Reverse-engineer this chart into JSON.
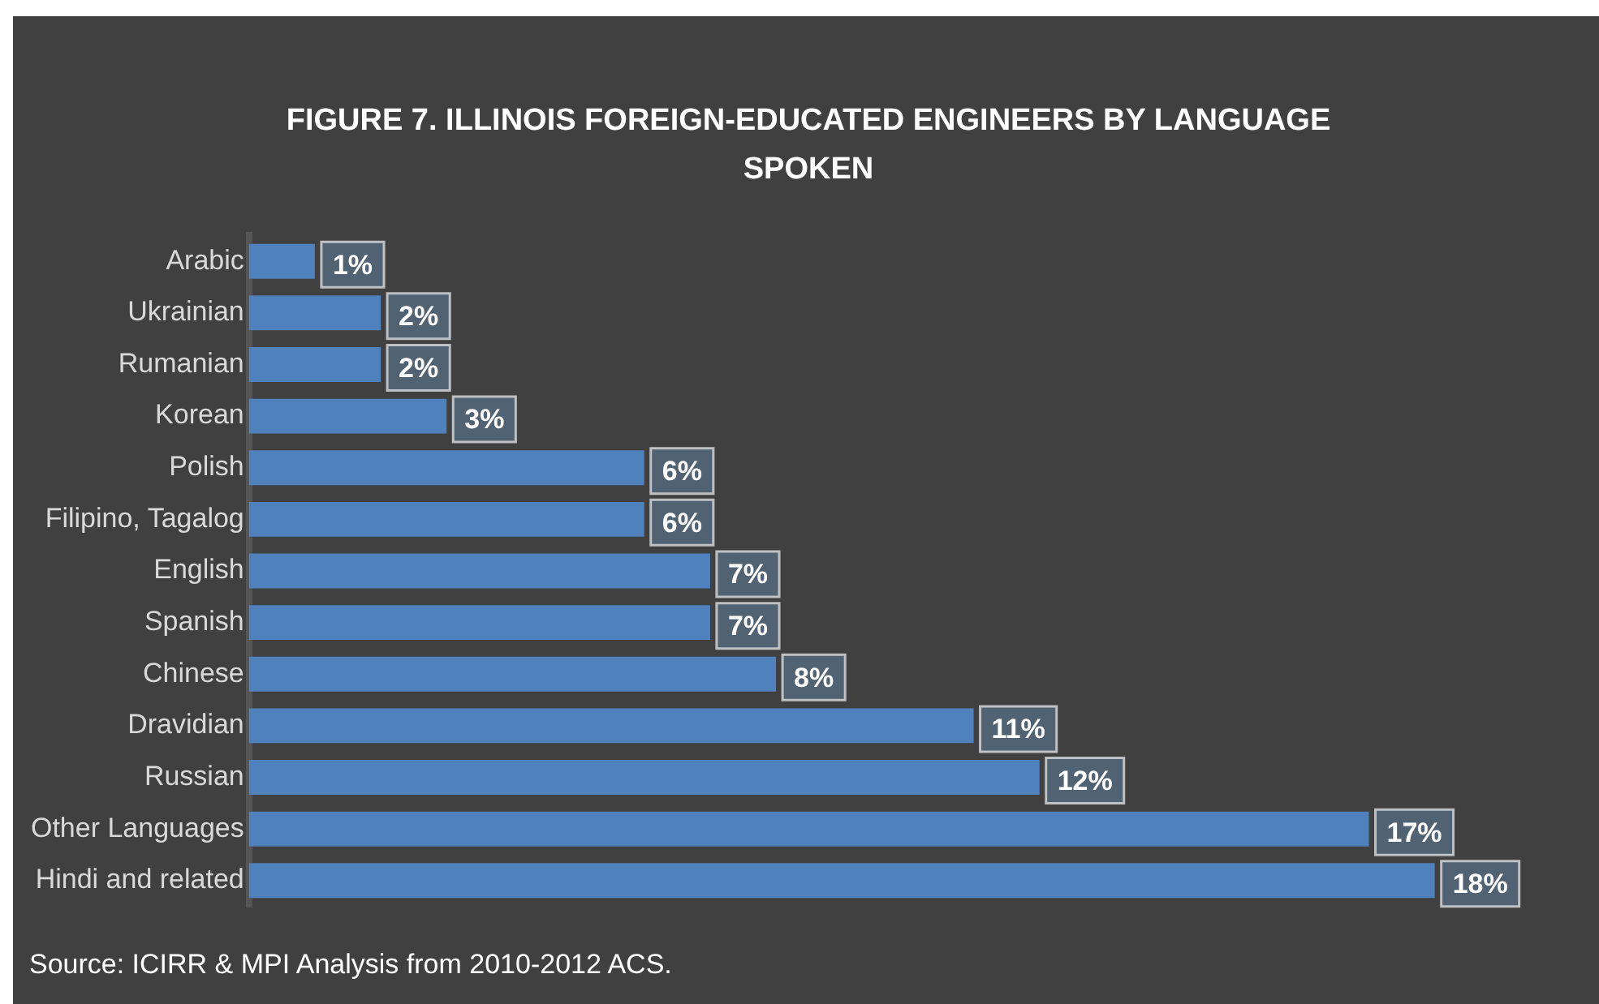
{
  "chart_data": {
    "type": "bar",
    "orientation": "horizontal",
    "title": "FIGURE 7. ILLINOIS FOREIGN-EDUCATED ENGINEERS BY LANGUAGE SPOKEN",
    "categories": [
      "Arabic",
      "Ukrainian",
      "Rumanian",
      "Korean",
      "Polish",
      "Filipino, Tagalog",
      "English",
      "Spanish",
      "Chinese",
      "Dravidian",
      "Russian",
      "Other Languages",
      "Hindi and related"
    ],
    "values": [
      1,
      2,
      2,
      3,
      6,
      6,
      7,
      7,
      8,
      11,
      12,
      17,
      18
    ],
    "value_labels": [
      "1%",
      "2%",
      "2%",
      "3%",
      "6%",
      "6%",
      "7%",
      "7%",
      "8%",
      "11%",
      "12%",
      "17%",
      "18%"
    ],
    "color": "#4f81bd",
    "grid": false,
    "annotations": [
      "Source: ICIRR & MPI Analysis from 2010-2012 ACS."
    ]
  }
}
